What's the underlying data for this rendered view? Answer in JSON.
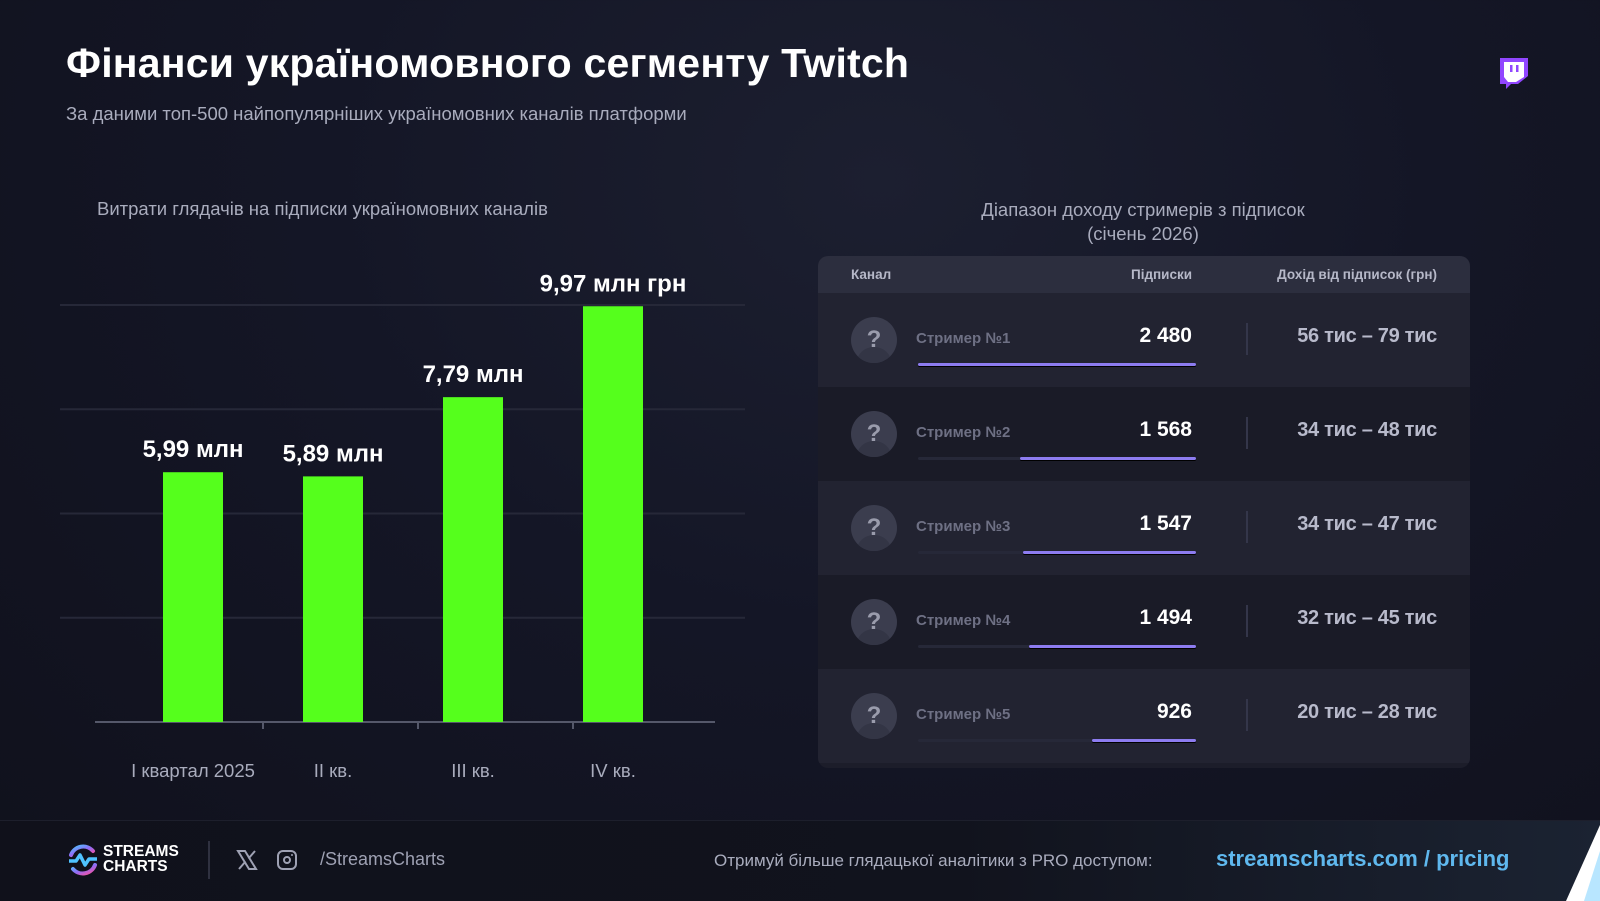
{
  "header": {
    "title": "Фінанси україномовного сегменту Twitch",
    "subtitle": "За даними топ-500 найпопулярніших україномовних каналів платформи",
    "brand_icon": "twitch-icon"
  },
  "chart_data": {
    "type": "bar",
    "title": "Витрати глядачів на підписки україномовних каналів",
    "xlabel": "",
    "ylabel": "",
    "unit": "млн грн",
    "categories": [
      "I квартал 2025",
      "II кв.",
      "III кв.",
      "IV кв."
    ],
    "values": [
      5.99,
      5.89,
      7.79,
      9.97
    ],
    "data_labels": [
      "5,99 млн",
      "5,89 млн",
      "7,79 млн",
      "9,97 млн грн"
    ],
    "ylim": [
      0,
      10
    ],
    "gridlines": [
      2.5,
      5,
      7.5,
      10
    ],
    "grid": true,
    "bar_color": "#55ff1c",
    "legend": "none"
  },
  "table": {
    "title_line1": "Діапазон доходу стримерів з підписок",
    "title_line2": "(січень 2026)",
    "headers": {
      "channel": "Канал",
      "subs": "Підписки",
      "income": "Дохід від підписок (грн)"
    },
    "avatar_glyph": "?",
    "max_subs": 2480,
    "rows": [
      {
        "name": "Стример №1",
        "subs_label": "2 480",
        "subs": 2480,
        "income": "56 тис – 79 тис"
      },
      {
        "name": "Стример №2",
        "subs_label": "1 568",
        "subs": 1568,
        "income": "34 тис – 48 тис"
      },
      {
        "name": "Стример №3",
        "subs_label": "1 547",
        "subs": 1547,
        "income": "34 тис – 47 тис"
      },
      {
        "name": "Стример №4",
        "subs_label": "1 494",
        "subs": 1494,
        "income": "32 тис – 45 тис"
      },
      {
        "name": "Стример №5",
        "subs_label": "926",
        "subs": 926,
        "income": "20 тис – 28 тис"
      }
    ],
    "bar_color": "#8d7cf0"
  },
  "footer": {
    "logo_line1": "STREAMS",
    "logo_line2": "CHARTS",
    "social_icons": [
      "x-icon",
      "instagram-icon"
    ],
    "handle": "/StreamsCharts",
    "promo_text": "Отримуй більше глядацької аналітики з PRO доступом:",
    "promo_link": "streamscharts.com / pricing",
    "link_color": "#5fb8ee"
  }
}
